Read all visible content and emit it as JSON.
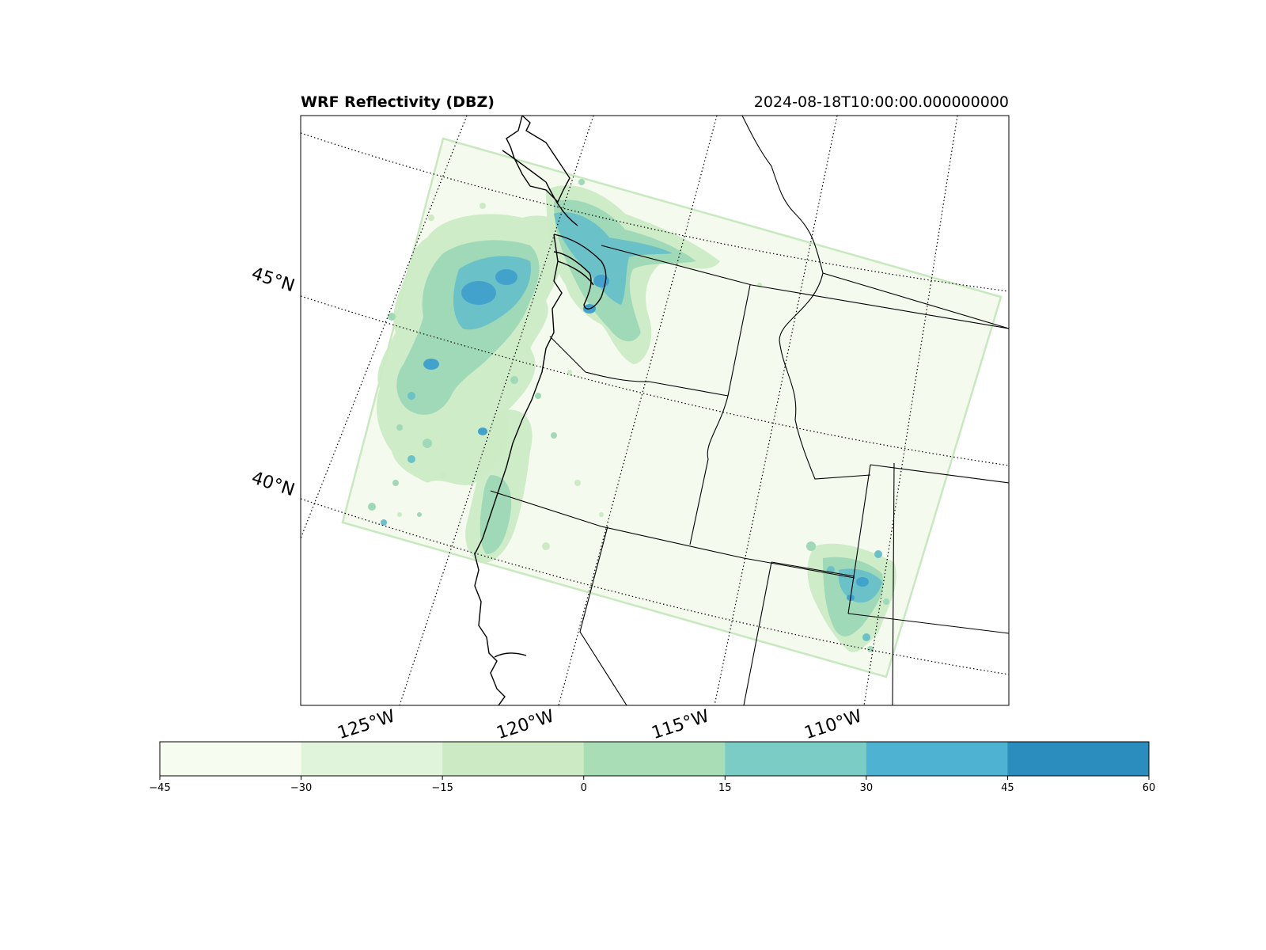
{
  "title": "WRF Reflectivity (DBZ)",
  "timestamp": "2024-08-18T10:00:00.000000000",
  "lat_labels": [
    "45°N",
    "40°N"
  ],
  "lon_labels": [
    "125°W",
    "120°W",
    "115°W",
    "110°W"
  ],
  "colorbar": {
    "ticks": [
      "−45",
      "−30",
      "−15",
      "0",
      "15",
      "30",
      "45",
      "60"
    ],
    "levels": [
      -45,
      -30,
      -15,
      0,
      15,
      30,
      45,
      60
    ],
    "colors": [
      "#f7fcf0",
      "#e0f3db",
      "#ccebc5",
      "#a8ddb5",
      "#7bccc4",
      "#4eb3d3",
      "#2b8cbe",
      "#0868ac"
    ]
  },
  "colors": {
    "domain_fill": "#f4faee",
    "domain_edge": "#c8e9c0",
    "low": "#ccebc5",
    "mid": "#9fd9b8",
    "high": "#6bc1c8",
    "peak": "#42a2cc"
  }
}
